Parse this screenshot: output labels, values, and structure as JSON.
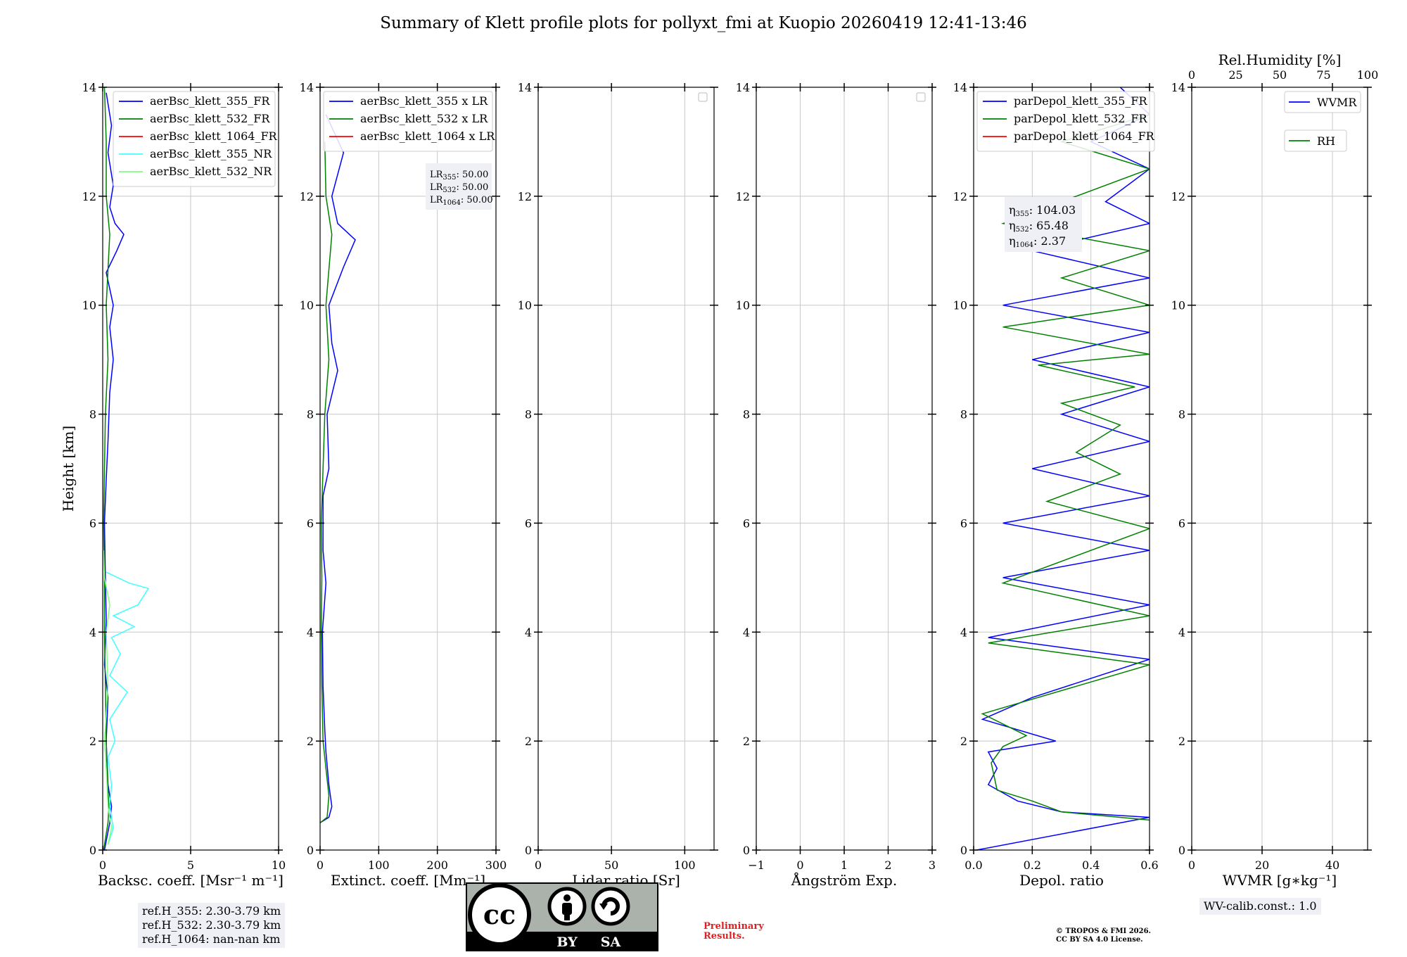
{
  "title": "Summary of Klett profile plots for pollyxt_fmi at Kuopio 20260419 12:41-13:46",
  "shared_y": {
    "label": "Height [km]",
    "range": [
      0,
      14
    ],
    "ticks": [
      0,
      2,
      4,
      6,
      8,
      10,
      12,
      14
    ]
  },
  "chart_data": [
    {
      "id": "backscatter",
      "type": "line",
      "xlabel": "Backsc. coeff. [Msr$^{-1}$ m$^{-1}$]",
      "xlabel_display": "Backsc. coeff. [Msr⁻¹ m⁻¹]",
      "xlim": [
        0,
        10
      ],
      "xticks": [
        0,
        5,
        10
      ],
      "grid": true,
      "legend": "top-right",
      "series": [
        {
          "name": "aerBsc_klett_355_FR",
          "color": "#0000ff",
          "points": [
            [
              0.1,
              0.0
            ],
            [
              0.4,
              0.5
            ],
            [
              0.5,
              0.8
            ],
            [
              0.3,
              1.2
            ],
            [
              0.2,
              2.0
            ],
            [
              0.3,
              2.8
            ],
            [
              0.1,
              3.4
            ],
            [
              0.2,
              4.2
            ],
            [
              0.15,
              5.0
            ],
            [
              0.1,
              6.0
            ],
            [
              0.2,
              6.8
            ],
            [
              0.3,
              7.5
            ],
            [
              0.4,
              8.4
            ],
            [
              0.6,
              9.0
            ],
            [
              0.4,
              9.6
            ],
            [
              0.6,
              10.0
            ],
            [
              0.2,
              10.6
            ],
            [
              0.8,
              11.0
            ],
            [
              1.2,
              11.3
            ],
            [
              0.7,
              11.5
            ],
            [
              0.4,
              11.8
            ],
            [
              0.6,
              12.2
            ],
            [
              0.3,
              12.8
            ],
            [
              0.5,
              13.3
            ],
            [
              0.2,
              13.9
            ]
          ]
        },
        {
          "name": "aerBsc_klett_532_FR",
          "color": "#008000",
          "points": [
            [
              0.05,
              0.0
            ],
            [
              0.3,
              0.5
            ],
            [
              0.35,
              0.8
            ],
            [
              0.25,
              1.4
            ],
            [
              0.2,
              2.0
            ],
            [
              0.15,
              3.0
            ],
            [
              0.1,
              4.0
            ],
            [
              0.1,
              5.0
            ],
            [
              0.05,
              6.0
            ],
            [
              0.1,
              7.0
            ],
            [
              0.15,
              8.0
            ],
            [
              0.3,
              9.0
            ],
            [
              0.2,
              10.0
            ],
            [
              0.4,
              11.3
            ],
            [
              0.2,
              12.0
            ],
            [
              0.2,
              13.0
            ],
            [
              0.1,
              14.0
            ]
          ]
        },
        {
          "name": "aerBsc_klett_1064_FR",
          "color": "#ff0000",
          "points": []
        },
        {
          "name": "aerBsc_klett_355_NR",
          "color": "#40ffff",
          "points": [
            [
              0.3,
              0.1
            ],
            [
              0.6,
              0.4
            ],
            [
              0.4,
              0.8
            ],
            [
              0.5,
              1.2
            ],
            [
              0.3,
              1.7
            ],
            [
              0.7,
              2.0
            ],
            [
              0.4,
              2.4
            ],
            [
              1.4,
              2.9
            ],
            [
              0.4,
              3.2
            ],
            [
              1.0,
              3.6
            ],
            [
              0.5,
              3.9
            ],
            [
              1.8,
              4.1
            ],
            [
              0.6,
              4.3
            ],
            [
              2.0,
              4.5
            ],
            [
              2.6,
              4.8
            ],
            [
              1.5,
              4.9
            ],
            [
              0.2,
              5.1
            ]
          ]
        },
        {
          "name": "aerBsc_klett_532_NR",
          "color": "#80ff80",
          "points": [
            [
              0.3,
              0.1
            ],
            [
              0.5,
              0.4
            ],
            [
              0.3,
              0.8
            ],
            [
              0.2,
              1.5
            ],
            [
              0.1,
              2.0
            ],
            [
              0.3,
              3.0
            ],
            [
              0.2,
              4.0
            ],
            [
              0.4,
              4.5
            ],
            [
              0.1,
              5.0
            ],
            [
              0.05,
              5.5
            ]
          ]
        }
      ],
      "info": [
        "ref.H_355: 2.30-3.79 km",
        "ref.H_532: 2.30-3.79 km",
        "ref.H_1064: nan-nan km"
      ]
    },
    {
      "id": "extinction",
      "type": "line",
      "xlabel": "Extinct. coeff. [Mm$^{-1}$]",
      "xlabel_display": "Extinct. coeff. [Mm⁻¹]",
      "xlim": [
        0,
        300
      ],
      "xticks": [
        0,
        100,
        200,
        300
      ],
      "grid": true,
      "legend": "top-right",
      "series": [
        {
          "name": "aerBsc_klett_355 x LR",
          "color": "#0000ff",
          "points": [
            [
              0,
              0.5
            ],
            [
              15,
              0.6
            ],
            [
              20,
              0.8
            ],
            [
              15,
              1.2
            ],
            [
              10,
              1.8
            ],
            [
              8,
              2.2
            ],
            [
              5,
              3.0
            ],
            [
              4,
              4.0
            ],
            [
              10,
              4.9
            ],
            [
              5,
              5.5
            ],
            [
              5,
              6.5
            ],
            [
              15,
              7.0
            ],
            [
              12,
              8.0
            ],
            [
              30,
              8.8
            ],
            [
              20,
              9.3
            ],
            [
              15,
              10.0
            ],
            [
              40,
              10.7
            ],
            [
              60,
              11.2
            ],
            [
              30,
              11.5
            ],
            [
              20,
              12.0
            ],
            [
              40,
              12.8
            ],
            [
              10,
              13.5
            ]
          ]
        },
        {
          "name": "aerBsc_klett_532 x LR",
          "color": "#008000",
          "points": [
            [
              0,
              0.5
            ],
            [
              12,
              0.6
            ],
            [
              15,
              1.0
            ],
            [
              10,
              1.5
            ],
            [
              5,
              2.0
            ],
            [
              3,
              3.0
            ],
            [
              2,
              4.0
            ],
            [
              3,
              5.0
            ],
            [
              2,
              6.0
            ],
            [
              5,
              7.0
            ],
            [
              8,
              8.0
            ],
            [
              15,
              9.0
            ],
            [
              10,
              10.0
            ],
            [
              20,
              11.3
            ],
            [
              10,
              12.0
            ],
            [
              8,
              13.0
            ]
          ]
        },
        {
          "name": "aerBsc_klett_1064 x LR",
          "color": "#ff0000",
          "points": []
        }
      ],
      "info": [
        "LR355: 50.00",
        "LR532: 50.00",
        "LR1064: 50.00"
      ]
    },
    {
      "id": "lidar_ratio",
      "type": "line",
      "xlabel": "Lidar ratio [Sr]",
      "xlim": [
        0,
        120
      ],
      "xticks": [
        0,
        50,
        100
      ],
      "grid": true,
      "legend": "top-right",
      "series": []
    },
    {
      "id": "angstrom",
      "type": "line",
      "xlabel": "Ångström Exp.",
      "xlim": [
        -1,
        3
      ],
      "xticks": [
        -1,
        0,
        1,
        2,
        3
      ],
      "grid": true,
      "legend": "top-right",
      "series": []
    },
    {
      "id": "depol",
      "type": "line",
      "xlabel": "Depol. ratio",
      "xlim": [
        0,
        0.6
      ],
      "xticks": [
        0.0,
        0.2,
        0.4,
        0.6
      ],
      "grid": true,
      "legend": "top-left",
      "series": [
        {
          "name": "parDepol_klett_355_FR",
          "color": "#0000ff",
          "points": [
            [
              0.01,
              0.0
            ],
            [
              0.6,
              0.6
            ],
            [
              0.3,
              0.7
            ],
            [
              0.15,
              0.9
            ],
            [
              0.05,
              1.2
            ],
            [
              0.08,
              1.5
            ],
            [
              0.05,
              1.8
            ],
            [
              0.28,
              2.0
            ],
            [
              0.03,
              2.4
            ],
            [
              0.2,
              2.8
            ],
            [
              0.6,
              3.5
            ],
            [
              0.05,
              3.9
            ],
            [
              0.6,
              4.5
            ],
            [
              0.1,
              5.0
            ],
            [
              0.6,
              5.5
            ],
            [
              0.1,
              6.0
            ],
            [
              0.6,
              6.5
            ],
            [
              0.2,
              7.0
            ],
            [
              0.6,
              7.5
            ],
            [
              0.3,
              8.0
            ],
            [
              0.6,
              8.5
            ],
            [
              0.2,
              9.0
            ],
            [
              0.6,
              9.5
            ],
            [
              0.1,
              10.0
            ],
            [
              0.6,
              10.5
            ],
            [
              0.2,
              11.0
            ],
            [
              0.6,
              11.5
            ],
            [
              0.45,
              11.9
            ],
            [
              0.6,
              12.5
            ],
            [
              0.4,
              13.0
            ],
            [
              0.6,
              13.5
            ],
            [
              0.5,
              14.0
            ]
          ]
        },
        {
          "name": "parDepol_klett_532_FR",
          "color": "#008000",
          "points": [
            [
              0.6,
              0.55
            ],
            [
              0.3,
              0.7
            ],
            [
              0.2,
              0.9
            ],
            [
              0.08,
              1.1
            ],
            [
              0.06,
              1.6
            ],
            [
              0.1,
              1.9
            ],
            [
              0.18,
              2.1
            ],
            [
              0.03,
              2.5
            ],
            [
              0.6,
              3.4
            ],
            [
              0.05,
              3.8
            ],
            [
              0.6,
              4.3
            ],
            [
              0.1,
              4.9
            ],
            [
              0.6,
              5.9
            ],
            [
              0.25,
              6.4
            ],
            [
              0.5,
              6.9
            ],
            [
              0.35,
              7.3
            ],
            [
              0.5,
              7.8
            ],
            [
              0.3,
              8.2
            ],
            [
              0.55,
              8.5
            ],
            [
              0.22,
              8.9
            ],
            [
              0.6,
              9.1
            ],
            [
              0.1,
              9.6
            ],
            [
              0.6,
              10.0
            ],
            [
              0.3,
              10.5
            ],
            [
              0.6,
              11.0
            ],
            [
              0.1,
              11.5
            ],
            [
              0.6,
              12.5
            ],
            [
              0.3,
              13.0
            ],
            [
              0.6,
              13.5
            ]
          ]
        },
        {
          "name": "parDepol_klett_1064_FR",
          "color": "#ff0000",
          "points": []
        }
      ],
      "info": [
        "η355: 104.03",
        "η532: 65.48",
        "η1064: 2.37"
      ]
    },
    {
      "id": "wvmr",
      "type": "line",
      "xlabel": "WVMR [$g*kg^{-1}$]",
      "xlabel_display": "WVMR [g∗kg⁻¹]",
      "xlim": [
        0,
        50
      ],
      "xticks": [
        0,
        20,
        40
      ],
      "grid": true,
      "top_xlabel": "Rel.Humidity [%]",
      "top_xlim": [
        0,
        100
      ],
      "top_xticks": [
        0,
        25,
        50,
        75,
        100
      ],
      "legend": "top-right",
      "series": [
        {
          "name": "WVMR",
          "color": "#0000ff",
          "points": []
        },
        {
          "name": "RH",
          "color": "#008000",
          "points": []
        }
      ],
      "info": [
        "WV-calib.const.: 1.0"
      ]
    }
  ],
  "footer": {
    "preliminary": [
      "Preliminary",
      "Results."
    ],
    "copyright": [
      "© TROPOS & FMI 2026.",
      "CC BY SA 4.0 License."
    ],
    "cc": {
      "cc": "cc",
      "by": "BY",
      "sa": "SA"
    }
  }
}
